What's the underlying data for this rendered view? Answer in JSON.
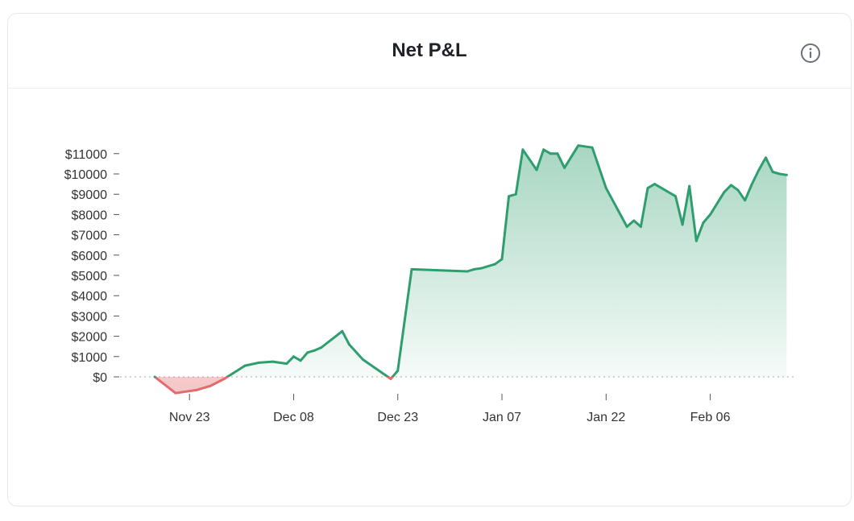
{
  "card": {
    "title": "Net P&L",
    "info_icon": "info-circle-icon"
  },
  "colors": {
    "positive": "#2f9e6e",
    "negative": "#e36b6b",
    "axis": "#555555",
    "zero_line": "#bbbbbb"
  },
  "chart_data": {
    "type": "area",
    "title": "Net P&L",
    "xlabel": "",
    "ylabel": "",
    "ylim": [
      -900,
      12000
    ],
    "xlim": [
      "2023-11-13",
      "2024-02-18"
    ],
    "y_ticks": [
      0,
      1000,
      2000,
      3000,
      4000,
      5000,
      6000,
      7000,
      8000,
      9000,
      10000,
      11000
    ],
    "y_tick_labels": [
      "$0",
      "$1000",
      "$2000",
      "$3000",
      "$4000",
      "$5000",
      "$6000",
      "$7000",
      "$8000",
      "$9000",
      "$10000",
      "$11000"
    ],
    "x_ticks": [
      "2023-11-23",
      "2023-12-08",
      "2023-12-23",
      "2024-01-07",
      "2024-01-22",
      "2024-02-06"
    ],
    "x_tick_labels": [
      "Nov 23",
      "Dec 08",
      "Dec 23",
      "Jan 07",
      "Jan 22",
      "Feb 06"
    ],
    "grid": false,
    "legend": "none",
    "series": [
      {
        "x": [
          "2023-11-18",
          "2023-11-21",
          "2023-11-24",
          "2023-11-26",
          "2023-11-28",
          "2023-12-01",
          "2023-12-03",
          "2023-12-05",
          "2023-12-07",
          "2023-12-08",
          "2023-12-09",
          "2023-12-10",
          "2023-12-11",
          "2023-12-12",
          "2023-12-15",
          "2023-12-16",
          "2023-12-18",
          "2023-12-22",
          "2023-12-23",
          "2023-12-25",
          "2024-01-02",
          "2024-01-03",
          "2024-01-04",
          "2024-01-06",
          "2024-01-07",
          "2024-01-08",
          "2024-01-09",
          "2024-01-10",
          "2024-01-12",
          "2024-01-13",
          "2024-01-14",
          "2024-01-15",
          "2024-01-16",
          "2024-01-18",
          "2024-01-20",
          "2024-01-22",
          "2024-01-25",
          "2024-01-26",
          "2024-01-27",
          "2024-01-28",
          "2024-01-29",
          "2024-02-01",
          "2024-02-02",
          "2024-02-03",
          "2024-02-04",
          "2024-02-05",
          "2024-02-06",
          "2024-02-08",
          "2024-02-09",
          "2024-02-10",
          "2024-02-11",
          "2024-02-12",
          "2024-02-13",
          "2024-02-14",
          "2024-02-15",
          "2024-02-16",
          "2024-02-17"
        ],
        "y": [
          0,
          -800,
          -650,
          -450,
          -100,
          550,
          700,
          750,
          650,
          1000,
          800,
          1200,
          1300,
          1450,
          2250,
          1600,
          850,
          -100,
          300,
          5300,
          5200,
          5300,
          5350,
          5550,
          5800,
          8900,
          9000,
          11200,
          10200,
          11200,
          11000,
          11000,
          10300,
          11400,
          11300,
          9300,
          7400,
          7700,
          7400,
          9300,
          9500,
          8900,
          7500,
          9400,
          6700,
          7600,
          8000,
          9100,
          9450,
          9200,
          8700,
          9500,
          10200,
          10800,
          10100,
          10000,
          9950
        ]
      }
    ]
  }
}
